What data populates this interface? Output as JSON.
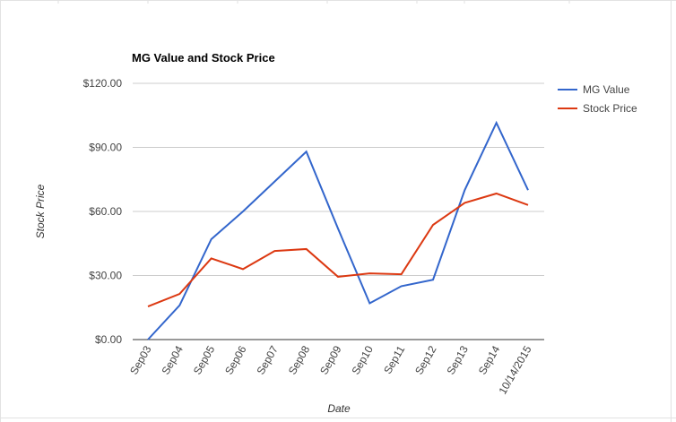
{
  "chart_data": {
    "type": "line",
    "title": "MG Value and Stock Price",
    "x_label": "Date",
    "y_label": "Stock Price",
    "categories": [
      "Sep03",
      "Sep04",
      "Sep05",
      "Sep06",
      "Sep07",
      "Sep08",
      "Sep09",
      "Sep10",
      "Sep11",
      "Sep12",
      "Sep13",
      "Sep14",
      "10/14/2015"
    ],
    "series": [
      {
        "name": "MG Value",
        "color": "#3366cc",
        "values": [
          0,
          16,
          47,
          60,
          74,
          88,
          52,
          17,
          25,
          28,
          70,
          101.5,
          70
        ]
      },
      {
        "name": "Stock Price",
        "color": "#dc3912",
        "values": [
          15.5,
          21.4,
          38,
          33,
          41.5,
          42.4,
          29.4,
          31,
          30.6,
          53.7,
          64,
          68.4,
          63
        ]
      }
    ],
    "ylim": [
      0,
      120
    ],
    "yticks": [
      {
        "value": 0,
        "label": "$0.00"
      },
      {
        "value": 30,
        "label": "$30.00"
      },
      {
        "value": 60,
        "label": "$60.00"
      },
      {
        "value": 90,
        "label": "$90.00"
      },
      {
        "value": 120,
        "label": "$120.00"
      }
    ],
    "grid": true,
    "legend": "right"
  }
}
